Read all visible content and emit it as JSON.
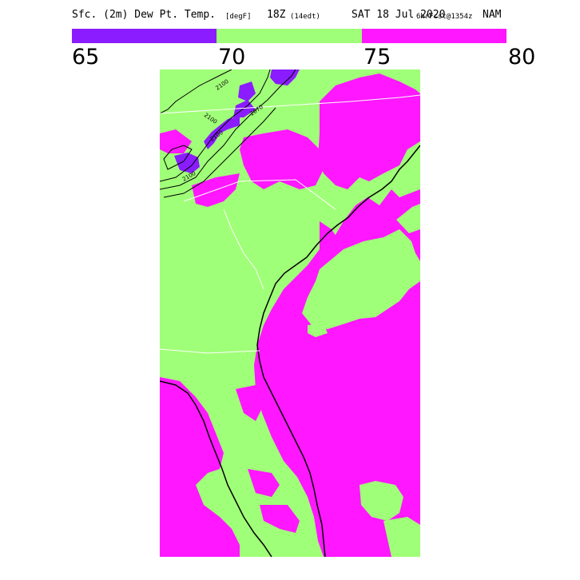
{
  "title": {
    "main": "Sfc. (2m) Dew Pt. Temp.",
    "units": "[degF]",
    "time": "18Z",
    "local_time": "(14edt)",
    "date": "SAT 18 Jul 2020",
    "forecast": "6hrFcst@1354z",
    "model": "NAM"
  },
  "legend": {
    "bins": [
      {
        "from": 65,
        "to": 70,
        "color": "#8a1cff"
      },
      {
        "from": 70,
        "to": 75,
        "color": "#a0ff78"
      },
      {
        "from": 75,
        "to": 80,
        "color": "#ff17ff"
      }
    ],
    "labels": [
      "65",
      "70",
      "75",
      "80"
    ]
  },
  "map": {
    "contour_labels": [
      "2100",
      "2070",
      "2100",
      "2100",
      "2100"
    ],
    "colors": {
      "low": "#8a1cff",
      "mid": "#a0ff78",
      "high": "#ff17ff",
      "coast": "#000000",
      "borders": "#ffffff"
    }
  }
}
